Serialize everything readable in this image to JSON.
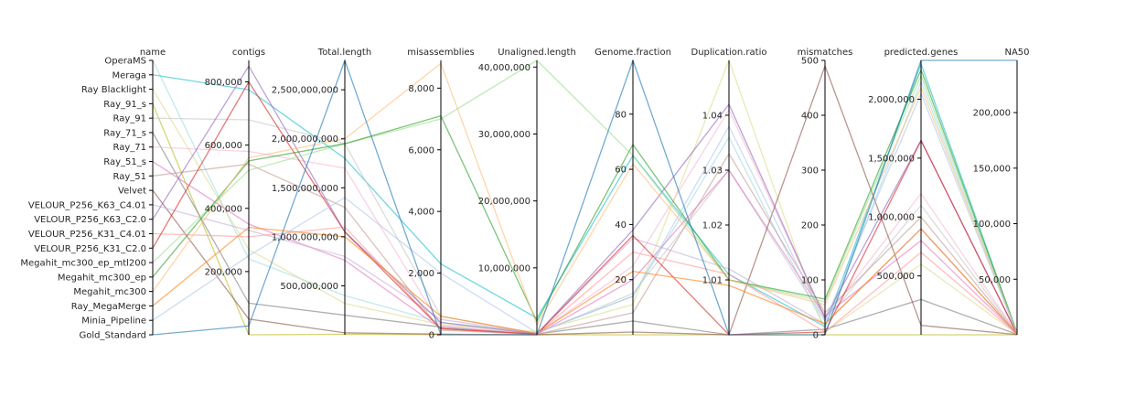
{
  "chart_data": {
    "type": "parallel_coordinates",
    "title": "",
    "grid": false,
    "legend": "none",
    "axes": [
      {
        "key": "name",
        "label": "name",
        "kind": "category"
      },
      {
        "key": "contigs",
        "label": "contigs",
        "kind": "number",
        "range": [
          0,
          868000
        ],
        "ticks": [
          200000,
          400000,
          600000,
          800000
        ],
        "tick_labels": [
          "200,000",
          "400,000",
          "600,000",
          "800,000"
        ]
      },
      {
        "key": "total_length",
        "label": "Total.length",
        "kind": "number",
        "range": [
          0,
          2800000000
        ],
        "ticks": [
          500000000,
          1000000000,
          1500000000,
          2000000000,
          2500000000
        ],
        "tick_labels": [
          "500,000,000",
          "1,000,000,000",
          "1,500,000,000",
          "2,000,000,000",
          "2,500,000,000"
        ]
      },
      {
        "key": "misassemblies",
        "label": "misassemblies",
        "kind": "number",
        "range": [
          0,
          8900
        ],
        "ticks": [
          0,
          2000,
          4000,
          6000,
          8000
        ],
        "tick_labels": [
          "0",
          "2,000",
          "4,000",
          "6,000",
          "8,000"
        ]
      },
      {
        "key": "unaligned_length",
        "label": "Unaligned.length",
        "kind": "number",
        "range": [
          0,
          41000000
        ],
        "ticks": [
          10000000,
          20000000,
          30000000,
          40000000
        ],
        "tick_labels": [
          "10,000,000",
          "20,000,000",
          "30,000,000",
          "40,000,000"
        ]
      },
      {
        "key": "genome_fraction",
        "label": "Genome.fraction",
        "kind": "number",
        "range": [
          0,
          99.5
        ],
        "ticks": [
          20,
          40,
          60,
          80
        ],
        "tick_labels": [
          "20",
          "40",
          "60",
          "80"
        ]
      },
      {
        "key": "duplication_ratio",
        "label": "Duplication.ratio",
        "kind": "number",
        "range": [
          1.0,
          1.05
        ],
        "ticks": [
          1.01,
          1.02,
          1.03,
          1.04
        ],
        "tick_labels": [
          "1.01",
          "1.02",
          "1.03",
          "1.04"
        ]
      },
      {
        "key": "mismatches",
        "label": "mismatches",
        "kind": "number",
        "range": [
          0,
          500
        ],
        "ticks": [
          0,
          100,
          200,
          300,
          400,
          500
        ],
        "tick_labels": [
          "0",
          "100",
          "200",
          "300",
          "400",
          "500"
        ]
      },
      {
        "key": "predicted_genes",
        "label": "predicted.genes",
        "kind": "number",
        "range": [
          0,
          2330000
        ],
        "ticks": [
          500000,
          1000000,
          1500000,
          2000000
        ],
        "tick_labels": [
          "500,000",
          "1,000,000",
          "1,500,000",
          "2,000,000"
        ]
      },
      {
        "key": "na50",
        "label": "NA50",
        "kind": "number",
        "range": [
          0,
          247000
        ],
        "ticks": [
          50000,
          100000,
          150000,
          200000
        ],
        "tick_labels": [
          "50,000",
          "100,000",
          "150,000",
          "200,000"
        ]
      }
    ],
    "categories": [
      "OperaMS",
      "Meraga",
      "Ray Blacklight",
      "Ray_91_s",
      "Ray_91",
      "Ray_71_s",
      "Ray_71",
      "Ray_51_s",
      "Ray_51",
      "Velvet",
      "VELOUR_P256_K63_C4.01",
      "VELOUR_P256_K63_C2.0",
      "VELOUR_P256_K31_C4.01",
      "VELOUR_P256_K31_C2.0",
      "Megahit_mc300_ep_mtl200",
      "Megahit_mc300_ep",
      "Megahit_mc300",
      "Ray_MegaMerge",
      "Minia_Pipeline",
      "Gold_Standard"
    ],
    "series": [
      {
        "name": "OperaMS",
        "color": "#9edae5",
        "values": {
          "contigs": 240000,
          "total_length": 400000000,
          "misassemblies": 400,
          "unaligned_length": 300000,
          "genome_fraction": 14,
          "duplication_ratio": 1.036,
          "mismatches": 12,
          "predicted_genes": 2150000,
          "na50": 700
        }
      },
      {
        "name": "Meraga",
        "color": "#17becf",
        "values": {
          "contigs": 775000,
          "total_length": 1800000000,
          "misassemblies": 2300,
          "unaligned_length": 2500000,
          "genome_fraction": 65,
          "duplication_ratio": 1.011,
          "mismatches": 15,
          "predicted_genes": 2300000,
          "na50": 1500
        }
      },
      {
        "name": "Ray Blacklight",
        "color": "#dbdb8d",
        "values": {
          "contigs": 270000,
          "total_length": 320000000,
          "misassemblies": 330,
          "unaligned_length": 500000,
          "genome_fraction": 11,
          "duplication_ratio": 1.05,
          "mismatches": 5,
          "predicted_genes": 600000,
          "na50": 500
        }
      },
      {
        "name": "Ray_91_s",
        "color": "#bcbd22",
        "values": {
          "contigs": 0,
          "total_length": 5000000,
          "misassemblies": 5,
          "unaligned_length": 0,
          "genome_fraction": 0,
          "duplication_ratio": 1.0,
          "mismatches": 0,
          "predicted_genes": 0,
          "na50": 0
        }
      },
      {
        "name": "Ray_91",
        "color": "#c7c7c7",
        "values": {
          "contigs": 680000,
          "total_length": 1950000000,
          "misassemblies": 600,
          "unaligned_length": 200000,
          "genome_fraction": 15,
          "duplication_ratio": 1.03,
          "mismatches": 25,
          "predicted_genes": 1100000,
          "na50": 1000
        }
      },
      {
        "name": "Ray_71_s",
        "color": "#7f7f7f",
        "values": {
          "contigs": 100000,
          "total_length": 200000000,
          "misassemblies": 250,
          "unaligned_length": 100000,
          "genome_fraction": 5,
          "duplication_ratio": 1.0,
          "mismatches": 10,
          "predicted_genes": 300000,
          "na50": 400
        }
      },
      {
        "name": "Ray_71",
        "color": "#f7b6d2",
        "values": {
          "contigs": 580000,
          "total_length": 1700000000,
          "misassemblies": 300,
          "unaligned_length": 150000,
          "genome_fraction": 25,
          "duplication_ratio": 1.041,
          "mismatches": 30,
          "predicted_genes": 1200000,
          "na50": 900
        }
      },
      {
        "name": "Ray_51_s",
        "color": "#e377c2",
        "values": {
          "contigs": 350000,
          "total_length": 760000000,
          "misassemblies": 200,
          "unaligned_length": 50000,
          "genome_fraction": 20,
          "duplication_ratio": 1.03,
          "mismatches": 35,
          "predicted_genes": 800000,
          "na50": 800
        }
      },
      {
        "name": "Ray_51",
        "color": "#c49c94",
        "values": {
          "contigs": 540000,
          "total_length": 1300000000,
          "misassemblies": 150,
          "unaligned_length": 80000,
          "genome_fraction": 8,
          "duplication_ratio": 1.033,
          "mismatches": 40,
          "predicted_genes": 1000000,
          "na50": 600
        }
      },
      {
        "name": "Velvet",
        "color": "#8c564b",
        "values": {
          "contigs": 50000,
          "total_length": 20000000,
          "misassemblies": 20,
          "unaligned_length": 10000,
          "genome_fraction": 1,
          "duplication_ratio": 1.0,
          "mismatches": 490,
          "predicted_genes": 80000,
          "na50": 200
        }
      },
      {
        "name": "VELOUR_P256_K63_C4.01",
        "color": "#c5b0d5",
        "values": {
          "contigs": 330000,
          "total_length": 800000000,
          "misassemblies": 500,
          "unaligned_length": 150000,
          "genome_fraction": 35,
          "duplication_ratio": 1.012,
          "mismatches": 20,
          "predicted_genes": 900000,
          "na50": 500
        }
      },
      {
        "name": "VELOUR_P256_K63_C2.0",
        "color": "#9467bd",
        "values": {
          "contigs": 850000,
          "total_length": 1050000000,
          "misassemblies": 400,
          "unaligned_length": 120000,
          "genome_fraction": 38,
          "duplication_ratio": 1.042,
          "mismatches": 30,
          "predicted_genes": 1650000,
          "na50": 700
        }
      },
      {
        "name": "VELOUR_P256_K31_C4.01",
        "color": "#ff9896",
        "values": {
          "contigs": 310000,
          "total_length": 1100000000,
          "misassemblies": 200,
          "unaligned_length": 100000,
          "genome_fraction": 30,
          "duplication_ratio": 1.011,
          "mismatches": 5,
          "predicted_genes": 700000,
          "na50": 600
        }
      },
      {
        "name": "VELOUR_P256_K31_C2.0",
        "color": "#d62728",
        "values": {
          "contigs": 800000,
          "total_length": 1050000000,
          "misassemblies": 200,
          "unaligned_length": 100000,
          "genome_fraction": 36,
          "duplication_ratio": 1.0,
          "mismatches": 5,
          "predicted_genes": 1650000,
          "na50": 500
        }
      },
      {
        "name": "Megahit_mc300_ep_mtl200",
        "color": "#98df8a",
        "values": {
          "contigs": 520000,
          "total_length": 1950000000,
          "misassemblies": 7000,
          "unaligned_length": 41000000,
          "genome_fraction": 65,
          "duplication_ratio": 1.01,
          "mismatches": 60,
          "predicted_genes": 2200000,
          "na50": 2000
        }
      },
      {
        "name": "Megahit_mc300_ep",
        "color": "#2ca02c",
        "values": {
          "contigs": 550000,
          "total_length": 1950000000,
          "misassemblies": 7100,
          "unaligned_length": 2000000,
          "genome_fraction": 69,
          "duplication_ratio": 1.01,
          "mismatches": 65,
          "predicted_genes": 2250000,
          "na50": 2000
        }
      },
      {
        "name": "Megahit_mc300",
        "color": "#ffbb78",
        "values": {
          "contigs": 560000,
          "total_length": 2000000000,
          "misassemblies": 8800,
          "unaligned_length": 1500000,
          "genome_fraction": 62,
          "duplication_ratio": 1.01,
          "mismatches": 55,
          "predicted_genes": 2100000,
          "na50": 1800
        }
      },
      {
        "name": "Ray_MegaMerge",
        "color": "#ff7f0e",
        "values": {
          "contigs": 340000,
          "total_length": 1000000000,
          "misassemblies": 600,
          "unaligned_length": 200000,
          "genome_fraction": 23,
          "duplication_ratio": 1.009,
          "mismatches": 20,
          "predicted_genes": 900000,
          "na50": 700
        }
      },
      {
        "name": "Minia_Pipeline",
        "color": "#aec7e8",
        "values": {
          "contigs": 250000,
          "total_length": 1400000000,
          "misassemblies": 2000,
          "unaligned_length": 300000,
          "genome_fraction": 14,
          "duplication_ratio": 1.038,
          "mismatches": 25,
          "predicted_genes": 2050000,
          "na50": 800
        }
      },
      {
        "name": "Gold_Standard",
        "color": "#1f77b4",
        "values": {
          "contigs": 28000,
          "total_length": 2800000000,
          "misassemblies": 0,
          "unaligned_length": 0,
          "genome_fraction": 99.5,
          "duplication_ratio": 1.0,
          "mismatches": 0,
          "predicted_genes": 2330000,
          "na50": 247000
        }
      }
    ]
  }
}
